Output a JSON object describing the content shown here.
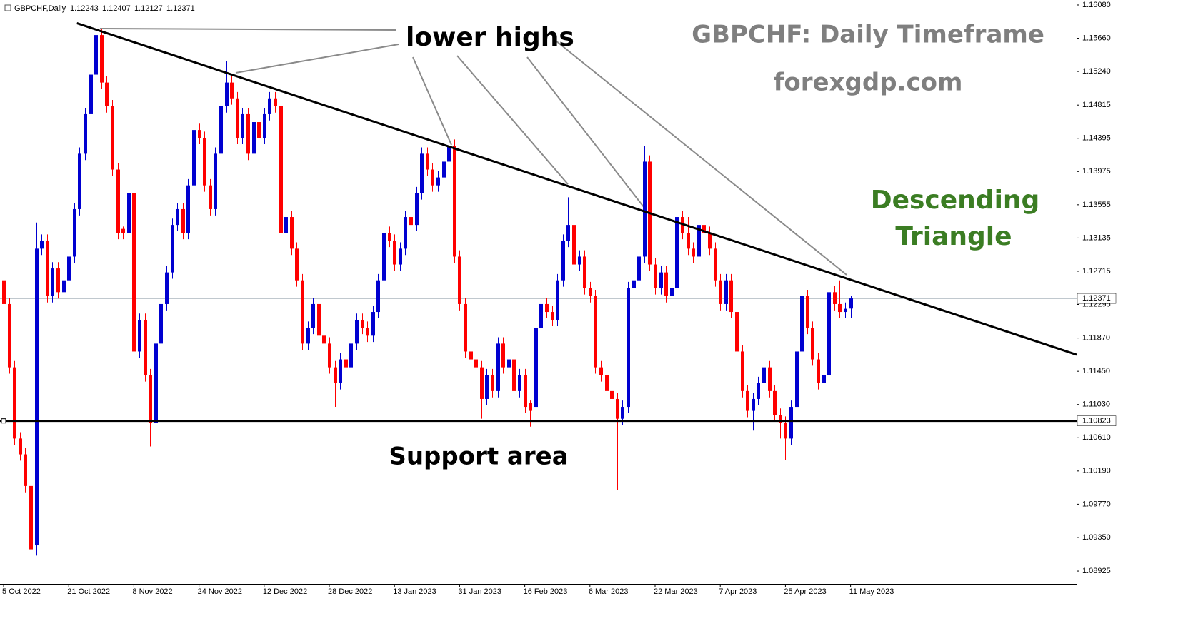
{
  "chart_data": {
    "type": "candlestick",
    "symbol": "GBPCHF,Daily",
    "title": "GBPCHF: Daily Timeframe",
    "subtitle": "forexgdp.com",
    "annotations": {
      "highs": "lower highs",
      "pattern": [
        "Descending",
        "Triangle"
      ],
      "support": "Support area"
    },
    "up_color": "#0000d0",
    "down_color": "#ff0000",
    "pattern_color": "#3b7d23",
    "ylim": [
      1.08763,
      1.16143
    ],
    "xlim": [
      -0.66,
      197.63
    ],
    "yticks": [
      {
        "value": 1.1608,
        "label": "1.16080"
      },
      {
        "value": 1.1566,
        "label": "1.15660"
      },
      {
        "value": 1.1524,
        "label": "1.15240"
      },
      1.14815,
      1.14395,
      1.13975,
      1.13555,
      1.13135,
      1.12715,
      1.12295,
      {
        "value": 1.1187,
        "label": "1.11870"
      },
      {
        "value": 1.1145,
        "label": "1.11450"
      },
      {
        "value": 1.1103,
        "label": "1.11030"
      },
      {
        "value": 1.1061,
        "label": "1.10610"
      },
      {
        "value": 1.1019,
        "label": "1.10190"
      },
      {
        "value": 1.0977,
        "label": "1.09770"
      },
      {
        "value": 1.0935,
        "label": "1.09350"
      },
      1.08925
    ],
    "x_labels": [
      "5 Oct 2022",
      "21 Oct 2022",
      "8 Nov 2022",
      "24 Nov 2022",
      "12 Dec 2022",
      "28 Dec 2022",
      "13 Jan 2023",
      "31 Jan 2023",
      "16 Feb 2023",
      "6 Mar 2023",
      "22 Mar 2023",
      "7 Apr 2023",
      "25 Apr 2023",
      "11 May 2023"
    ],
    "x_label_step": 12,
    "support_level": 1.10823,
    "trendline": [
      [
        13.5,
        1.1585
      ],
      [
        197.63,
        1.1166
      ]
    ],
    "ohlc": [
      [
        1.126,
        1.1268,
        1.1222,
        1.123
      ],
      [
        1.123,
        1.1238,
        1.1142,
        1.115
      ],
      [
        1.115,
        1.1158,
        1.1052,
        1.106
      ],
      [
        1.106,
        1.1068,
        1.1032,
        1.104
      ],
      [
        1.104,
        1.1048,
        1.0992,
        1.1
      ],
      [
        1.1,
        1.1008,
        1.0906,
        1.092
      ],
      [
        1.0925,
        1.1333,
        1.0912,
        1.13
      ],
      [
        1.13,
        1.1318,
        1.1292,
        1.131
      ],
      [
        1.131,
        1.1318,
        1.1232,
        1.124
      ],
      [
        1.124,
        1.1283,
        1.1232,
        1.1275
      ],
      [
        1.1275,
        1.1283,
        1.1237,
        1.1245
      ],
      [
        1.1245,
        1.1268,
        1.1237,
        1.126
      ],
      [
        1.126,
        1.1298,
        1.1252,
        1.129
      ],
      [
        1.129,
        1.1358,
        1.1282,
        1.135
      ],
      [
        1.135,
        1.1428,
        1.1342,
        1.142
      ],
      [
        1.142,
        1.1478,
        1.1412,
        1.147
      ],
      [
        1.147,
        1.1528,
        1.1462,
        1.152
      ],
      [
        1.152,
        1.1578,
        1.1512,
        1.157
      ],
      [
        1.157,
        1.1578,
        1.1502,
        1.151
      ],
      [
        1.151,
        1.1518,
        1.1472,
        1.148
      ],
      [
        1.148,
        1.1488,
        1.1392,
        1.14
      ],
      [
        1.14,
        1.1408,
        1.1312,
        1.132
      ],
      [
        1.1325,
        1.1328,
        1.1312,
        1.132
      ],
      [
        1.132,
        1.1378,
        1.1312,
        1.137
      ],
      [
        1.137,
        1.1378,
        1.1162,
        1.117
      ],
      [
        1.117,
        1.1218,
        1.1162,
        1.121
      ],
      [
        1.121,
        1.1218,
        1.1132,
        1.114
      ],
      [
        1.114,
        1.1148,
        1.105,
        1.108
      ],
      [
        1.108,
        1.1188,
        1.1072,
        1.118
      ],
      [
        1.118,
        1.1238,
        1.1172,
        1.123
      ],
      [
        1.123,
        1.1278,
        1.1222,
        1.127
      ],
      [
        1.127,
        1.1338,
        1.1262,
        1.133
      ],
      [
        1.133,
        1.1358,
        1.1322,
        1.135
      ],
      [
        1.135,
        1.1358,
        1.1312,
        1.132
      ],
      [
        1.132,
        1.1388,
        1.1312,
        1.138
      ],
      [
        1.138,
        1.1458,
        1.1372,
        1.145
      ],
      [
        1.145,
        1.1458,
        1.1432,
        1.144
      ],
      [
        1.144,
        1.1448,
        1.1372,
        1.138
      ],
      [
        1.138,
        1.1388,
        1.1342,
        1.135
      ],
      [
        1.135,
        1.1428,
        1.1342,
        1.142
      ],
      [
        1.142,
        1.1488,
        1.1412,
        1.148
      ],
      [
        1.148,
        1.1537,
        1.1472,
        1.151
      ],
      [
        1.151,
        1.1518,
        1.1482,
        1.149
      ],
      [
        1.149,
        1.1498,
        1.1432,
        1.144
      ],
      [
        1.144,
        1.1478,
        1.1432,
        1.147
      ],
      [
        1.147,
        1.1478,
        1.1412,
        1.142
      ],
      [
        1.142,
        1.154,
        1.1412,
        1.146
      ],
      [
        1.146,
        1.1468,
        1.1432,
        1.144
      ],
      [
        1.144,
        1.1478,
        1.1432,
        1.147
      ],
      [
        1.147,
        1.1498,
        1.1462,
        1.149
      ],
      [
        1.149,
        1.1498,
        1.1472,
        1.148
      ],
      [
        1.148,
        1.1488,
        1.1312,
        1.132
      ],
      [
        1.132,
        1.1348,
        1.1312,
        1.134
      ],
      [
        1.134,
        1.1348,
        1.1292,
        1.13
      ],
      [
        1.13,
        1.1308,
        1.1252,
        1.126
      ],
      [
        1.126,
        1.1268,
        1.1172,
        1.118
      ],
      [
        1.118,
        1.1208,
        1.1172,
        1.12
      ],
      [
        1.12,
        1.1238,
        1.1192,
        1.123
      ],
      [
        1.123,
        1.1238,
        1.1182,
        1.119
      ],
      [
        1.119,
        1.1198,
        1.1172,
        1.118
      ],
      [
        1.118,
        1.1188,
        1.1142,
        1.115
      ],
      [
        1.115,
        1.1158,
        1.11,
        1.113
      ],
      [
        1.113,
        1.1168,
        1.1122,
        1.116
      ],
      [
        1.116,
        1.1168,
        1.1142,
        1.115
      ],
      [
        1.115,
        1.1188,
        1.1142,
        1.118
      ],
      [
        1.118,
        1.1218,
        1.1172,
        1.121
      ],
      [
        1.121,
        1.1218,
        1.1192,
        1.12
      ],
      [
        1.12,
        1.1208,
        1.1182,
        1.119
      ],
      [
        1.119,
        1.1228,
        1.1182,
        1.122
      ],
      [
        1.122,
        1.1268,
        1.1212,
        1.126
      ],
      [
        1.126,
        1.1328,
        1.1252,
        1.132
      ],
      [
        1.132,
        1.1328,
        1.1302,
        1.131
      ],
      [
        1.131,
        1.1318,
        1.1272,
        1.128
      ],
      [
        1.128,
        1.1308,
        1.1272,
        1.13
      ],
      [
        1.13,
        1.1348,
        1.1292,
        1.134
      ],
      [
        1.134,
        1.1348,
        1.1322,
        1.133
      ],
      [
        1.133,
        1.1378,
        1.1322,
        1.137
      ],
      [
        1.137,
        1.1428,
        1.1362,
        1.142
      ],
      [
        1.142,
        1.1428,
        1.1392,
        1.14
      ],
      [
        1.14,
        1.1408,
        1.1372,
        1.138
      ],
      [
        1.138,
        1.1398,
        1.1372,
        1.139
      ],
      [
        1.139,
        1.1418,
        1.1382,
        1.141
      ],
      [
        1.141,
        1.1437,
        1.1402,
        1.143
      ],
      [
        1.143,
        1.1438,
        1.1282,
        1.129
      ],
      [
        1.129,
        1.1298,
        1.1222,
        1.123
      ],
      [
        1.123,
        1.1238,
        1.1162,
        1.117
      ],
      [
        1.117,
        1.1178,
        1.1152,
        1.116
      ],
      [
        1.116,
        1.1168,
        1.1142,
        1.115
      ],
      [
        1.115,
        1.1158,
        1.1085,
        1.111
      ],
      [
        1.111,
        1.1148,
        1.1102,
        1.114
      ],
      [
        1.114,
        1.1148,
        1.1112,
        1.112
      ],
      [
        1.112,
        1.1188,
        1.1112,
        1.118
      ],
      [
        1.118,
        1.1188,
        1.1142,
        1.115
      ],
      [
        1.115,
        1.1168,
        1.1142,
        1.116
      ],
      [
        1.116,
        1.1168,
        1.1112,
        1.112
      ],
      [
        1.112,
        1.1148,
        1.1112,
        1.114
      ],
      [
        1.114,
        1.1148,
        1.1092,
        1.11
      ],
      [
        1.1105,
        1.1108,
        1.1075,
        1.1095
      ],
      [
        1.11,
        1.1208,
        1.1092,
        1.12
      ],
      [
        1.12,
        1.1238,
        1.1192,
        1.123
      ],
      [
        1.123,
        1.1238,
        1.1212,
        1.122
      ],
      [
        1.122,
        1.1228,
        1.1202,
        1.121
      ],
      [
        1.121,
        1.1268,
        1.1202,
        1.126
      ],
      [
        1.126,
        1.1318,
        1.1252,
        1.131
      ],
      [
        1.131,
        1.1365,
        1.1302,
        1.133
      ],
      [
        1.133,
        1.1338,
        1.1272,
        1.128
      ],
      [
        1.128,
        1.1298,
        1.1272,
        1.129
      ],
      [
        1.129,
        1.1298,
        1.1242,
        1.125
      ],
      [
        1.125,
        1.1258,
        1.1232,
        1.124
      ],
      [
        1.124,
        1.1248,
        1.1142,
        1.115
      ],
      [
        1.115,
        1.1158,
        1.1132,
        1.114
      ],
      [
        1.114,
        1.1148,
        1.1112,
        1.112
      ],
      [
        1.112,
        1.1128,
        1.1102,
        1.111
      ],
      [
        1.111,
        1.1118,
        1.0995,
        1.1085
      ],
      [
        1.1085,
        1.1108,
        1.1077,
        1.11
      ],
      [
        1.11,
        1.1258,
        1.1092,
        1.125
      ],
      [
        1.125,
        1.1268,
        1.1242,
        1.126
      ],
      [
        1.126,
        1.1298,
        1.1252,
        1.129
      ],
      [
        1.129,
        1.143,
        1.1282,
        1.141
      ],
      [
        1.141,
        1.1418,
        1.1272,
        1.128
      ],
      [
        1.128,
        1.1288,
        1.1242,
        1.125
      ],
      [
        1.125,
        1.1278,
        1.1242,
        1.127
      ],
      [
        1.127,
        1.1278,
        1.1232,
        1.124
      ],
      [
        1.124,
        1.1258,
        1.1232,
        1.125
      ],
      [
        1.125,
        1.1348,
        1.1242,
        1.134
      ],
      [
        1.134,
        1.1348,
        1.1312,
        1.132
      ],
      [
        1.132,
        1.134,
        1.1292,
        1.13
      ],
      [
        1.13,
        1.1308,
        1.1282,
        1.129
      ],
      [
        1.129,
        1.1338,
        1.1282,
        1.133
      ],
      [
        1.133,
        1.1415,
        1.1312,
        1.132
      ],
      [
        1.132,
        1.1328,
        1.1292,
        1.13
      ],
      [
        1.13,
        1.1308,
        1.1252,
        1.126
      ],
      [
        1.126,
        1.1268,
        1.1222,
        1.123
      ],
      [
        1.123,
        1.1268,
        1.1222,
        1.126
      ],
      [
        1.126,
        1.1268,
        1.1212,
        1.122
      ],
      [
        1.122,
        1.1228,
        1.1162,
        1.117
      ],
      [
        1.117,
        1.1178,
        1.1112,
        1.112
      ],
      [
        1.112,
        1.1128,
        1.1087,
        1.1095
      ],
      [
        1.1095,
        1.1118,
        1.107,
        1.111
      ],
      [
        1.111,
        1.1138,
        1.1102,
        1.113
      ],
      [
        1.113,
        1.1158,
        1.1122,
        1.115
      ],
      [
        1.115,
        1.1158,
        1.1112,
        1.112
      ],
      [
        1.112,
        1.1128,
        1.1082,
        1.109
      ],
      [
        1.109,
        1.1098,
        1.106,
        1.108
      ],
      [
        1.108,
        1.1088,
        1.1033,
        1.106
      ],
      [
        1.106,
        1.1108,
        1.1052,
        1.11
      ],
      [
        1.11,
        1.1178,
        1.1092,
        1.117
      ],
      [
        1.117,
        1.1248,
        1.1162,
        1.124
      ],
      [
        1.124,
        1.1248,
        1.1192,
        1.12
      ],
      [
        1.12,
        1.1208,
        1.1152,
        1.116
      ],
      [
        1.116,
        1.1168,
        1.1122,
        1.113
      ],
      [
        1.113,
        1.1148,
        1.111,
        1.114
      ],
      [
        1.114,
        1.1275,
        1.1132,
        1.1245
      ],
      [
        1.1245,
        1.1253,
        1.1222,
        1.123
      ],
      [
        1.123,
        1.126,
        1.1212,
        1.122
      ],
      [
        1.122,
        1.1232,
        1.1212,
        1.1224
      ],
      [
        1.12243,
        1.12407,
        1.12127,
        1.12371
      ]
    ]
  }
}
